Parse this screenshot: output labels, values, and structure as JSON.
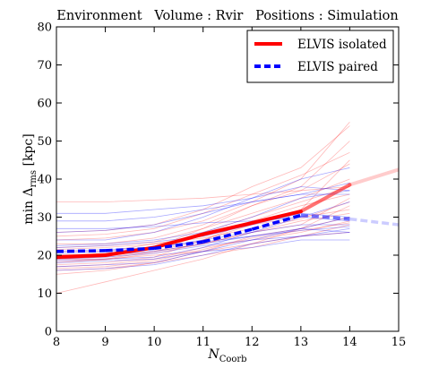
{
  "chart_data": {
    "type": "line",
    "title": "Environment   Volume : Rvir   Positions : Simulation",
    "xlabel": "N",
    "xlabel_sub": "Coorb",
    "ylabel": "min Δ",
    "ylabel_sub": "rms",
    "ylabel_unit": " [kpc]",
    "xlim": [
      8,
      15
    ],
    "ylim": [
      0,
      80
    ],
    "xticks": [
      8,
      9,
      10,
      11,
      12,
      13,
      14,
      15
    ],
    "yticks": [
      0,
      10,
      20,
      30,
      40,
      50,
      60,
      70,
      80
    ],
    "legend_position": "top-right",
    "grid": false,
    "series": [
      {
        "name": "ELVIS isolated",
        "color": "#ff0000",
        "style": "solid",
        "x": [
          8,
          9,
          10,
          11,
          12,
          13,
          14,
          15
        ],
        "y": [
          19.5,
          20,
          22,
          25.5,
          28.5,
          31.5,
          38.5,
          42.5
        ],
        "faded_from_index": 5
      },
      {
        "name": "ELVIS paired",
        "color": "#0000ff",
        "style": "dashed",
        "x": [
          8,
          9,
          10,
          11,
          12,
          13,
          14,
          15
        ],
        "y": [
          21,
          21.2,
          21.8,
          23.5,
          26.8,
          30.5,
          29.5,
          28
        ],
        "faded_from_index": 5
      }
    ],
    "background_lines": {
      "red": [
        [
          17,
          17.5,
          19,
          22,
          24,
          26,
          29
        ],
        [
          18,
          19,
          20,
          21,
          23,
          25,
          28
        ],
        [
          19,
          19.5,
          21,
          23,
          26,
          28,
          35
        ],
        [
          20,
          20.5,
          22,
          26,
          30,
          34,
          38
        ],
        [
          21,
          21,
          23,
          25,
          28,
          32,
          45
        ],
        [
          22,
          22.5,
          23.5,
          27,
          31,
          35,
          40
        ],
        [
          16,
          16.5,
          18,
          20,
          22,
          25,
          26
        ],
        [
          17.5,
          18,
          19.5,
          24,
          29,
          33,
          36
        ],
        [
          23,
          23,
          24.5,
          28,
          33,
          38,
          50
        ],
        [
          24,
          24.5,
          26,
          29,
          34,
          40,
          55
        ],
        [
          19,
          19,
          21,
          24,
          28,
          30,
          32
        ],
        [
          15,
          16,
          18,
          21,
          25,
          27,
          30
        ],
        [
          25,
          25.5,
          27,
          31,
          36,
          41,
          47
        ],
        [
          10,
          13,
          16,
          19,
          23,
          27,
          33
        ],
        [
          20,
          20,
          22,
          27,
          33,
          37,
          44
        ],
        [
          18.5,
          18.8,
          20.5,
          23,
          26,
          29,
          31
        ],
        [
          26,
          26.5,
          28,
          32,
          38,
          43,
          54
        ],
        [
          21.5,
          22,
          23,
          24.5,
          27,
          29.5,
          34
        ],
        [
          34,
          34,
          34.5,
          35,
          36,
          37,
          38
        ],
        [
          16.5,
          17,
          18.5,
          21.5,
          24.5,
          26.5,
          28.5
        ]
      ],
      "blue": [
        [
          29,
          29,
          30,
          32,
          34,
          36,
          39
        ],
        [
          21,
          21.5,
          22,
          24,
          26,
          28,
          28
        ],
        [
          17,
          17.5,
          18,
          21,
          24,
          27,
          30
        ],
        [
          18.5,
          19,
          19.5,
          22,
          26,
          30,
          34
        ],
        [
          22.5,
          23,
          24,
          26,
          30,
          35,
          37
        ],
        [
          20,
          20,
          21,
          23,
          25,
          27,
          26
        ],
        [
          24,
          24,
          26,
          30,
          35,
          40,
          43
        ],
        [
          19,
          19.5,
          20.5,
          22.5,
          24,
          25,
          26
        ],
        [
          16,
          16.5,
          17.5,
          20,
          23,
          25,
          27
        ],
        [
          31,
          31,
          32,
          33,
          35,
          38,
          37
        ],
        [
          22,
          22.5,
          23.5,
          25,
          28,
          31,
          30
        ],
        [
          18,
          18.5,
          19,
          21,
          22,
          24,
          24
        ],
        [
          26,
          26.5,
          28,
          31,
          34,
          36,
          36
        ],
        [
          20.5,
          21,
          22,
          23.5,
          25,
          26.5,
          27.5
        ],
        [
          27,
          27,
          27.5,
          28.5,
          29,
          30,
          29
        ]
      ]
    }
  }
}
